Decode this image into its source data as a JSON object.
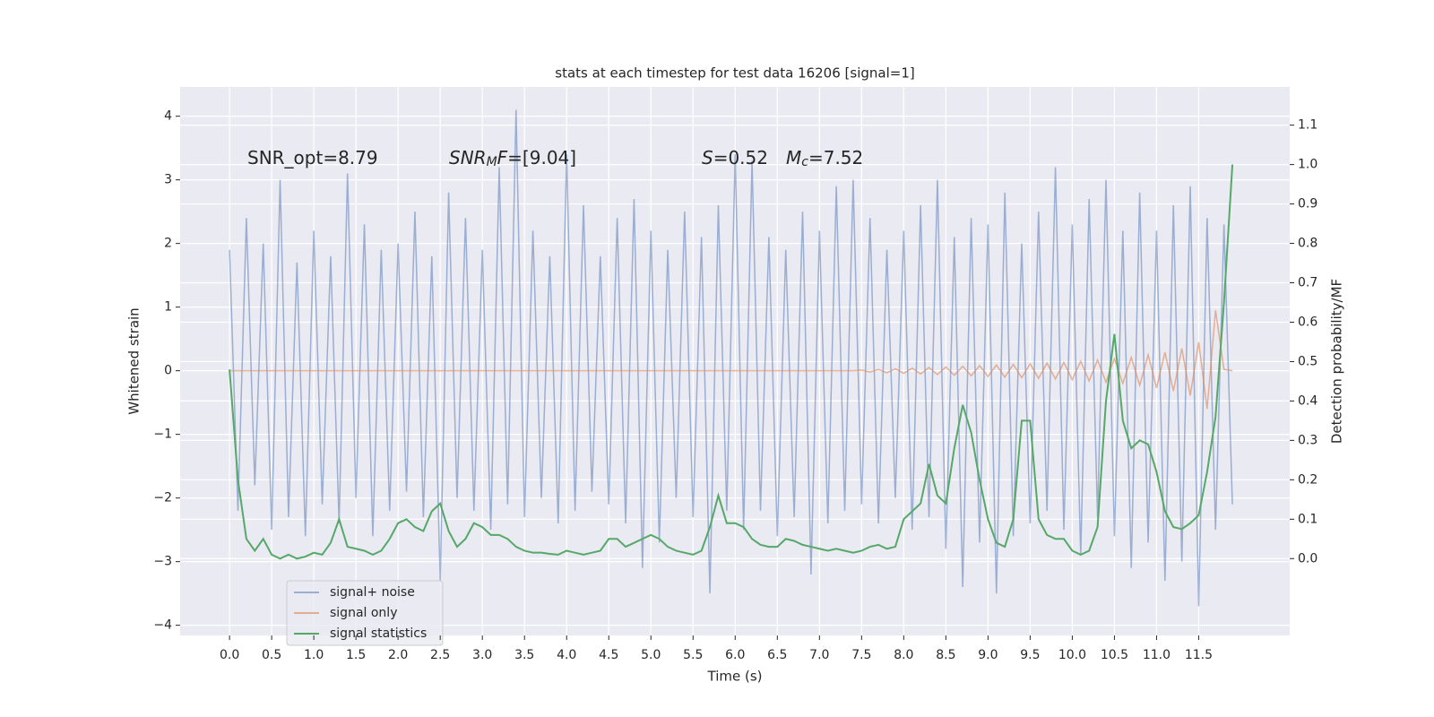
{
  "chart_data": {
    "type": "line",
    "title": "stats at each timestep for test data 16206 [signal=1]",
    "xlabel": "Time (s)",
    "ylabel": "Whitened strain",
    "y2label": "Detection probability/MF",
    "xlim": [
      -0.586,
      12.58
    ],
    "ylim": [
      -4.16,
      4.46
    ],
    "y2lim": [
      -0.195,
      1.197
    ],
    "xticks": [
      {
        "value": 0,
        "label": "0.0"
      },
      {
        "value": 0.5,
        "label": "0.5"
      },
      {
        "value": 1,
        "label": "1.0"
      },
      {
        "value": 1.5,
        "label": "1.5"
      },
      {
        "value": 2,
        "label": "2.0"
      },
      {
        "value": 2.5,
        "label": "2.5"
      },
      {
        "value": 3,
        "label": "3.0"
      },
      {
        "value": 3.5,
        "label": "3.5"
      },
      {
        "value": 4,
        "label": "4.0"
      },
      {
        "value": 4.5,
        "label": "4.5"
      },
      {
        "value": 5,
        "label": "5.0"
      },
      {
        "value": 5.5,
        "label": "5.5"
      },
      {
        "value": 6,
        "label": "6.0"
      },
      {
        "value": 6.5,
        "label": "6.5"
      },
      {
        "value": 7,
        "label": "7.0"
      },
      {
        "value": 7.5,
        "label": "7.5"
      },
      {
        "value": 8,
        "label": "8.0"
      },
      {
        "value": 8.5,
        "label": "8.5"
      },
      {
        "value": 9,
        "label": "9.0"
      },
      {
        "value": 9.5,
        "label": "9.5"
      },
      {
        "value": 10,
        "label": "10.0"
      },
      {
        "value": 10.5,
        "label": "10.5"
      },
      {
        "value": 11,
        "label": "11.0"
      },
      {
        "value": 11.5,
        "label": "11.5"
      }
    ],
    "yticks": [
      {
        "value": -4,
        "label": "−4"
      },
      {
        "value": -3,
        "label": "−3"
      },
      {
        "value": -2,
        "label": "−2"
      },
      {
        "value": -1,
        "label": "−1"
      },
      0,
      1,
      2,
      3,
      4
    ],
    "y2ticks": [
      {
        "value": 0,
        "label": "0.0"
      },
      {
        "value": 0.1,
        "label": "0.1"
      },
      {
        "value": 0.2,
        "label": "0.2"
      },
      {
        "value": 0.3,
        "label": "0.3"
      },
      {
        "value": 0.4,
        "label": "0.4"
      },
      {
        "value": 0.5,
        "label": "0.5"
      },
      {
        "value": 0.6,
        "label": "0.6"
      },
      {
        "value": 0.7,
        "label": "0.7"
      },
      {
        "value": 0.8,
        "label": "0.8"
      },
      {
        "value": 0.9,
        "label": "0.9"
      },
      {
        "value": 1.0,
        "label": "1.0"
      },
      {
        "value": 1.1,
        "label": "1.1"
      }
    ],
    "grid": true,
    "legend": "lower left",
    "annotations": [
      [
        {
          "text": "SNR_opt=8.79",
          "style": "normal"
        }
      ],
      [
        {
          "text": "SNR",
          "style": "italic"
        },
        {
          "text": "M",
          "style": "italic-sub"
        },
        {
          "text": "F",
          "style": "italic"
        },
        {
          "text": "=[9.04]",
          "style": "normal"
        }
      ],
      [
        {
          "text": "S",
          "style": "italic"
        },
        {
          "text": "=0.52",
          "style": "normal"
        }
      ],
      [
        {
          "text": "M",
          "style": "italic"
        },
        {
          "text": "c",
          "style": "italic-sub"
        },
        {
          "text": "=7.52",
          "style": "normal"
        }
      ]
    ],
    "x": [
      0,
      0.1,
      0.2,
      0.3,
      0.4,
      0.5,
      0.6,
      0.7,
      0.8,
      0.9,
      1,
      1.1,
      1.2,
      1.3,
      1.4,
      1.5,
      1.6,
      1.7,
      1.8,
      1.9,
      2,
      2.1,
      2.2,
      2.3,
      2.4,
      2.5,
      2.6,
      2.7,
      2.8,
      2.9,
      3,
      3.1,
      3.2,
      3.3,
      3.4,
      3.5,
      3.6,
      3.7,
      3.8,
      3.9,
      4,
      4.1,
      4.2,
      4.3,
      4.4,
      4.5,
      4.6,
      4.7,
      4.8,
      4.9,
      5,
      5.1,
      5.2,
      5.3,
      5.4,
      5.5,
      5.6,
      5.7,
      5.8,
      5.9,
      6,
      6.1,
      6.2,
      6.3,
      6.4,
      6.5,
      6.6,
      6.7,
      6.8,
      6.9,
      7,
      7.1,
      7.2,
      7.3,
      7.4,
      7.5,
      7.6,
      7.7,
      7.8,
      7.9,
      8,
      8.1,
      8.2,
      8.3,
      8.4,
      8.5,
      8.6,
      8.7,
      8.8,
      8.9,
      9,
      9.1,
      9.2,
      9.3,
      9.4,
      9.5,
      9.6,
      9.7,
      9.8,
      9.9,
      10,
      10.1,
      10.2,
      10.3,
      10.4,
      10.5,
      10.6,
      10.7,
      10.8,
      10.9,
      11,
      11.1,
      11.2,
      11.3,
      11.4,
      11.5,
      11.6,
      11.7,
      11.8,
      11.9
    ],
    "series": [
      {
        "name": "signal+ noise",
        "color": "#4c72b0",
        "opacity": 0.5,
        "axis": "y",
        "values": [
          1.9,
          -2.2,
          2.4,
          -1.8,
          2.0,
          -2.5,
          3.0,
          -2.3,
          1.7,
          -2.6,
          2.2,
          -2.1,
          1.8,
          -2.4,
          3.1,
          -2.0,
          2.3,
          -2.6,
          1.9,
          -2.2,
          2.0,
          -1.9,
          2.5,
          -2.3,
          1.8,
          -3.3,
          2.8,
          -2.0,
          2.4,
          -2.2,
          1.9,
          -2.5,
          3.2,
          -2.1,
          4.1,
          -2.3,
          2.2,
          -2.0,
          1.8,
          -2.4,
          3.4,
          -2.2,
          2.6,
          -1.9,
          1.8,
          -2.1,
          2.4,
          -2.4,
          2.7,
          -3.1,
          2.2,
          -2.7,
          1.9,
          -2.0,
          2.5,
          -2.3,
          2.1,
          -3.5,
          2.6,
          -2.2,
          3.4,
          -2.5,
          3.3,
          -2.2,
          2.1,
          -2.6,
          1.9,
          -2.3,
          2.5,
          -3.2,
          2.2,
          -2.4,
          2.9,
          -2.2,
          3.0,
          -2.1,
          2.4,
          -2.4,
          1.9,
          -2.0,
          2.2,
          -2.5,
          2.6,
          -2.3,
          3.0,
          -2.8,
          2.1,
          -3.4,
          2.4,
          -2.7,
          2.3,
          -3.5,
          2.8,
          -2.6,
          2.0,
          -2.4,
          2.5,
          -2.2,
          3.2,
          -2.5,
          2.3,
          -2.9,
          2.7,
          -2.3,
          3.0,
          -2.6,
          2.2,
          -3.1,
          2.8,
          -2.7,
          2.2,
          -3.3,
          2.6,
          -3.0,
          2.9,
          -3.7,
          2.4,
          -2.5,
          2.3,
          -2.1
        ]
      },
      {
        "name": "signal only",
        "color": "#dd8452",
        "opacity": 0.6,
        "axis": "y",
        "values": [
          0,
          0,
          0,
          0,
          0,
          0,
          0,
          0,
          0,
          0,
          0,
          0,
          0,
          0,
          0,
          0,
          0,
          0,
          0,
          0,
          0,
          0,
          0,
          0,
          0,
          0,
          0,
          0,
          0,
          0,
          0,
          0,
          0,
          0,
          0,
          0,
          0,
          0,
          0,
          0,
          0,
          0,
          0,
          0,
          0,
          0,
          0,
          0,
          0,
          0,
          0,
          0,
          0,
          0,
          0,
          0,
          0,
          0,
          0,
          0,
          0,
          0,
          0,
          0,
          0,
          0,
          0,
          0,
          0,
          0,
          0,
          0,
          0,
          0,
          0,
          0.01,
          -0.02,
          0.02,
          -0.03,
          0.03,
          -0.04,
          0.04,
          -0.05,
          0.05,
          -0.06,
          0.06,
          -0.07,
          0.07,
          -0.08,
          0.08,
          -0.09,
          0.09,
          -0.1,
          0.1,
          -0.11,
          0.11,
          -0.12,
          0.12,
          -0.13,
          0.13,
          -0.14,
          0.15,
          -0.16,
          0.17,
          -0.18,
          0.19,
          -0.2,
          0.21,
          -0.23,
          0.25,
          -0.27,
          0.29,
          -0.32,
          0.35,
          -0.39,
          0.45,
          -0.6,
          0.95,
          0.02,
          0
        ]
      },
      {
        "name": "signal statistics",
        "color": "#55a868",
        "opacity": 1,
        "axis": "y2",
        "values": [
          0.48,
          0.2,
          0.05,
          0.02,
          0.05,
          0.01,
          0.0,
          0.01,
          0.0,
          0.005,
          0.015,
          0.01,
          0.04,
          0.1,
          0.03,
          0.025,
          0.02,
          0.01,
          0.02,
          0.05,
          0.09,
          0.1,
          0.08,
          0.07,
          0.12,
          0.14,
          0.07,
          0.03,
          0.05,
          0.09,
          0.08,
          0.06,
          0.06,
          0.05,
          0.03,
          0.02,
          0.015,
          0.015,
          0.012,
          0.01,
          0.02,
          0.015,
          0.01,
          0.015,
          0.02,
          0.05,
          0.05,
          0.03,
          0.04,
          0.05,
          0.06,
          0.05,
          0.03,
          0.02,
          0.015,
          0.01,
          0.02,
          0.08,
          0.16,
          0.09,
          0.09,
          0.08,
          0.05,
          0.035,
          0.03,
          0.03,
          0.05,
          0.045,
          0.035,
          0.03,
          0.025,
          0.02,
          0.025,
          0.02,
          0.015,
          0.02,
          0.03,
          0.035,
          0.025,
          0.03,
          0.1,
          0.12,
          0.14,
          0.24,
          0.16,
          0.14,
          0.28,
          0.39,
          0.32,
          0.2,
          0.1,
          0.04,
          0.03,
          0.1,
          0.35,
          0.35,
          0.1,
          0.06,
          0.05,
          0.05,
          0.02,
          0.01,
          0.02,
          0.08,
          0.4,
          0.57,
          0.35,
          0.28,
          0.3,
          0.29,
          0.22,
          0.12,
          0.08,
          0.075,
          0.09,
          0.11,
          0.22,
          0.36,
          0.65,
          1.0
        ]
      }
    ]
  }
}
